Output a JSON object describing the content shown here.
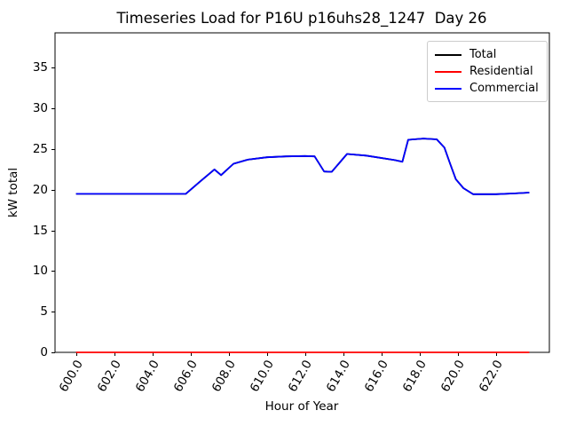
{
  "figure": {
    "background": "#ffffff"
  },
  "chart_data": {
    "type": "line",
    "title": "Timeseries Load for P16U p16uhs28_1247  Day 26",
    "xlabel": "Hour of Year",
    "ylabel": "kW total",
    "xlim": [
      598.9,
      624.8
    ],
    "ylim": [
      0,
      39.3
    ],
    "grid": false,
    "legend_position": "upper right",
    "x_tick_rotation_deg": 60,
    "x_ticks": [
      {
        "value": 600,
        "label": "600.0"
      },
      {
        "value": 602,
        "label": "602.0"
      },
      {
        "value": 604,
        "label": "604.0"
      },
      {
        "value": 606,
        "label": "606.0"
      },
      {
        "value": 608,
        "label": "608.0"
      },
      {
        "value": 610,
        "label": "610.0"
      },
      {
        "value": 612,
        "label": "612.0"
      },
      {
        "value": 614,
        "label": "614.0"
      },
      {
        "value": 616,
        "label": "616.0"
      },
      {
        "value": 618,
        "label": "618.0"
      },
      {
        "value": 620,
        "label": "620.0"
      },
      {
        "value": 622,
        "label": "622.0"
      }
    ],
    "y_ticks": [
      {
        "value": 0,
        "label": "0"
      },
      {
        "value": 5,
        "label": "5"
      },
      {
        "value": 10,
        "label": "10"
      },
      {
        "value": 15,
        "label": "15"
      },
      {
        "value": 20,
        "label": "20"
      },
      {
        "value": 25,
        "label": "25"
      },
      {
        "value": 30,
        "label": "30"
      },
      {
        "value": 35,
        "label": "35"
      }
    ],
    "series": [
      {
        "name": "Total",
        "color": "#000000",
        "note": "identical to Commercial curve, drawn underneath it (hidden)",
        "points": [
          [
            600.0,
            19.5
          ],
          [
            601.0,
            19.5
          ],
          [
            602.0,
            19.5
          ],
          [
            603.0,
            19.5
          ],
          [
            604.0,
            19.5
          ],
          [
            605.0,
            19.5
          ],
          [
            605.75,
            19.5
          ],
          [
            606.5,
            21.0
          ],
          [
            607.25,
            22.5
          ],
          [
            607.6,
            21.8
          ],
          [
            608.25,
            23.2
          ],
          [
            609.0,
            23.7
          ],
          [
            610.0,
            24.0
          ],
          [
            611.0,
            24.1
          ],
          [
            612.0,
            24.15
          ],
          [
            612.5,
            24.1
          ],
          [
            613.0,
            22.25
          ],
          [
            613.4,
            22.2
          ],
          [
            614.2,
            24.4
          ],
          [
            615.2,
            24.2
          ],
          [
            616.7,
            23.65
          ],
          [
            617.1,
            23.45
          ],
          [
            617.4,
            26.15
          ],
          [
            618.2,
            26.3
          ],
          [
            618.9,
            26.2
          ],
          [
            619.3,
            25.2
          ],
          [
            619.6,
            23.2
          ],
          [
            619.9,
            21.3
          ],
          [
            620.3,
            20.2
          ],
          [
            620.8,
            19.45
          ],
          [
            622.0,
            19.45
          ],
          [
            623.0,
            19.55
          ],
          [
            623.75,
            19.65
          ]
        ]
      },
      {
        "name": "Residential",
        "color": "#ff0000",
        "points": [
          [
            600.0,
            0.0
          ],
          [
            623.75,
            0.0
          ]
        ]
      },
      {
        "name": "Commercial",
        "color": "#0000ff",
        "points": [
          [
            600.0,
            19.5
          ],
          [
            601.0,
            19.5
          ],
          [
            602.0,
            19.5
          ],
          [
            603.0,
            19.5
          ],
          [
            604.0,
            19.5
          ],
          [
            605.0,
            19.5
          ],
          [
            605.75,
            19.5
          ],
          [
            606.5,
            21.0
          ],
          [
            607.25,
            22.5
          ],
          [
            607.6,
            21.8
          ],
          [
            608.25,
            23.2
          ],
          [
            609.0,
            23.7
          ],
          [
            610.0,
            24.0
          ],
          [
            611.0,
            24.1
          ],
          [
            612.0,
            24.15
          ],
          [
            612.5,
            24.1
          ],
          [
            613.0,
            22.25
          ],
          [
            613.4,
            22.2
          ],
          [
            614.2,
            24.4
          ],
          [
            615.2,
            24.2
          ],
          [
            616.7,
            23.65
          ],
          [
            617.1,
            23.45
          ],
          [
            617.4,
            26.15
          ],
          [
            618.2,
            26.3
          ],
          [
            618.9,
            26.2
          ],
          [
            619.3,
            25.2
          ],
          [
            619.6,
            23.2
          ],
          [
            619.9,
            21.3
          ],
          [
            620.3,
            20.2
          ],
          [
            620.8,
            19.45
          ],
          [
            622.0,
            19.45
          ],
          [
            623.0,
            19.55
          ],
          [
            623.75,
            19.65
          ]
        ]
      }
    ]
  }
}
